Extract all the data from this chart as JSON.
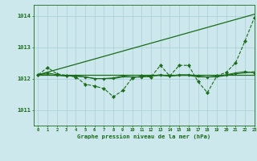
{
  "background_color": "#cce8ec",
  "plot_bg_color": "#cce8ec",
  "grid_color": "#aacdd4",
  "line_color": "#1a6b1a",
  "title": "Graphe pression niveau de la mer (hPa)",
  "xlim": [
    -0.5,
    23
  ],
  "ylim": [
    1010.5,
    1014.35
  ],
  "yticks": [
    1011,
    1012,
    1013,
    1014
  ],
  "xticks": [
    0,
    1,
    2,
    3,
    4,
    5,
    6,
    7,
    8,
    9,
    10,
    11,
    12,
    13,
    14,
    15,
    16,
    17,
    18,
    19,
    20,
    21,
    22,
    23
  ],
  "straight_line": [
    [
      0,
      1012.12
    ],
    [
      23,
      1014.05
    ]
  ],
  "flat_line": [
    1012.12,
    1012.12,
    1012.12,
    1012.12,
    1012.12,
    1012.12,
    1012.12,
    1012.12,
    1012.12,
    1012.12,
    1012.12,
    1012.12,
    1012.12,
    1012.12,
    1012.12,
    1012.12,
    1012.12,
    1012.12,
    1012.12,
    1012.12,
    1012.12,
    1012.12,
    1012.12,
    1012.12
  ],
  "jagged_line": [
    1012.12,
    1012.35,
    1012.15,
    1012.1,
    1012.05,
    1011.82,
    1011.76,
    1011.68,
    1011.42,
    1011.62,
    1012.02,
    1012.08,
    1012.05,
    1012.42,
    1012.08,
    1012.42,
    1012.42,
    1011.9,
    1011.55,
    1012.08,
    1012.2,
    1012.5,
    1013.2,
    1013.95
  ],
  "smooth_line": [
    1012.12,
    1012.18,
    1012.12,
    1012.08,
    1012.08,
    1012.05,
    1012.0,
    1012.0,
    1012.02,
    1012.08,
    1012.05,
    1012.05,
    1012.08,
    1012.12,
    1012.08,
    1012.12,
    1012.12,
    1012.08,
    1012.05,
    1012.08,
    1012.12,
    1012.18,
    1012.22,
    1012.18
  ],
  "marker_line": [
    1012.12,
    1012.12,
    1012.1,
    1012.08,
    1012.08,
    1012.05,
    1012.0,
    1012.0,
    1012.0,
    1012.05,
    1012.05,
    1012.05,
    1012.08,
    1012.1,
    1012.08,
    1012.1,
    1012.1,
    1012.05,
    1012.05,
    1012.05,
    1012.1,
    1012.15,
    1012.18,
    1012.22
  ]
}
